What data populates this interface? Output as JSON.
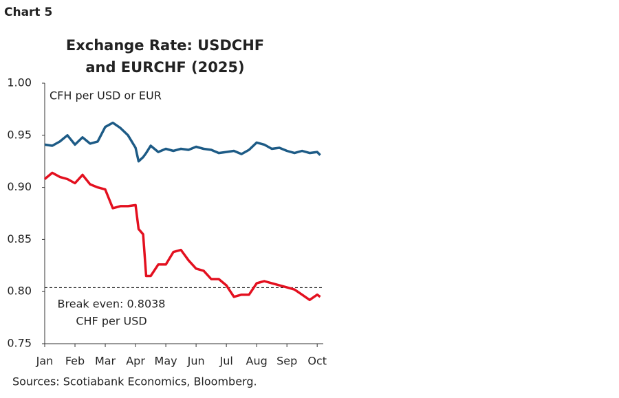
{
  "header": "Chart 5",
  "chart_data": {
    "type": "line",
    "title": [
      "Exchange Rate: USDCHF",
      "and EURCHF (2025)"
    ],
    "y_label": "CFH per USD or EUR",
    "x": [
      0,
      0.25,
      0.5,
      0.75,
      1,
      1.25,
      1.5,
      1.75,
      2,
      2.25,
      2.5,
      2.75,
      3,
      3.1,
      3.25,
      3.35,
      3.5,
      3.75,
      4,
      4.25,
      4.5,
      4.75,
      5,
      5.25,
      5.5,
      5.75,
      6,
      6.25,
      6.5,
      6.75,
      7,
      7.25,
      7.5,
      7.75,
      8,
      8.25,
      8.5,
      8.75,
      9,
      9.1
    ],
    "series": [
      {
        "color": "#1d5b86",
        "values": [
          0.941,
          0.94,
          0.944,
          0.95,
          0.941,
          0.948,
          0.942,
          0.944,
          0.958,
          0.962,
          0.957,
          0.95,
          0.938,
          0.925,
          0.929,
          0.933,
          0.94,
          0.934,
          0.937,
          0.935,
          0.937,
          0.936,
          0.939,
          0.937,
          0.936,
          0.933,
          0.934,
          0.935,
          0.932,
          0.936,
          0.943,
          0.941,
          0.937,
          0.938,
          0.935,
          0.933,
          0.935,
          0.933,
          0.934,
          0.931
        ]
      },
      {
        "color": "#e3101f",
        "values": [
          0.908,
          0.914,
          0.91,
          0.908,
          0.904,
          0.912,
          0.903,
          0.9,
          0.898,
          0.88,
          0.882,
          0.882,
          0.883,
          0.86,
          0.855,
          0.815,
          0.815,
          0.826,
          0.826,
          0.838,
          0.84,
          0.83,
          0.822,
          0.82,
          0.812,
          0.812,
          0.806,
          0.795,
          0.797,
          0.797,
          0.808,
          0.81,
          0.808,
          0.806,
          0.804,
          0.802,
          0.797,
          0.792,
          0.797,
          0.795
        ]
      }
    ],
    "xlim": [
      0,
      9.2
    ],
    "xticks": [
      {
        "value": 0,
        "label": "Jan"
      },
      {
        "value": 1,
        "label": "Feb"
      },
      {
        "value": 2,
        "label": "Mar"
      },
      {
        "value": 3,
        "label": "Apr"
      },
      {
        "value": 4,
        "label": "May"
      },
      {
        "value": 5,
        "label": "Jun"
      },
      {
        "value": 6,
        "label": "Jul"
      },
      {
        "value": 7,
        "label": "Aug"
      },
      {
        "value": 8,
        "label": "Sep"
      },
      {
        "value": 9,
        "label": "Oct"
      }
    ],
    "ylim": [
      0.75,
      1.0
    ],
    "yticks": [
      {
        "value": 1.0,
        "label": "1.00"
      },
      0.95,
      {
        "value": 0.9,
        "label": "0.90"
      },
      0.85,
      {
        "value": 0.8,
        "label": "0.80"
      },
      0.75
    ],
    "reference_line": {
      "value": 0.8038,
      "label": [
        "Break even: 0.8038",
        "CHF per USD"
      ]
    },
    "source": "Sources: Scotiabank Economics, Bloomberg."
  }
}
